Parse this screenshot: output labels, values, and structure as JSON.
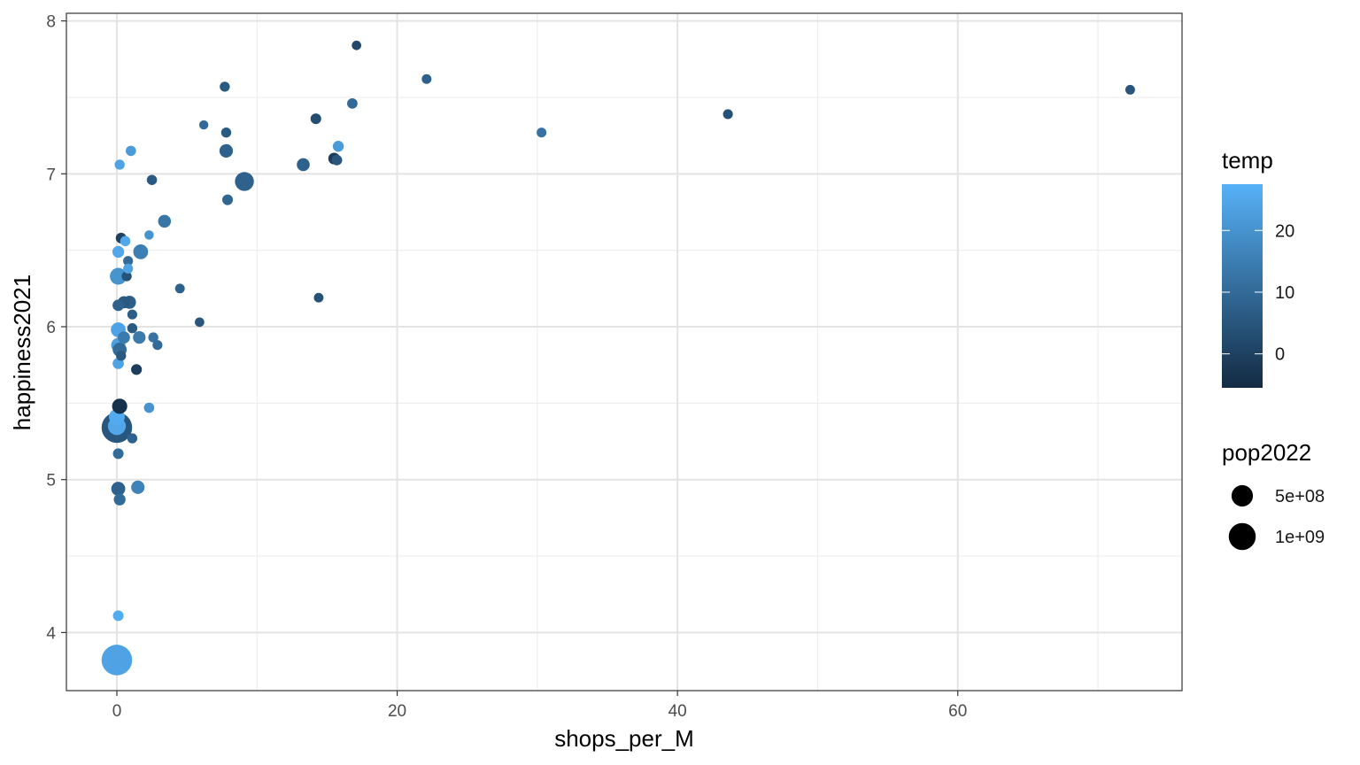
{
  "chart_data": {
    "type": "scatter",
    "xlabel": "shops_per_M",
    "ylabel": "happiness2021",
    "xlim": [
      -3.6,
      76.0
    ],
    "ylim": [
      3.62,
      8.05
    ],
    "x_ticks": [
      0,
      20,
      40,
      60
    ],
    "y_ticks": [
      4,
      5,
      6,
      7,
      8
    ],
    "grid": true,
    "legend_placement": "right",
    "color_legend": {
      "title": "temp",
      "breaks": [
        20,
        10,
        0
      ],
      "limits": [
        -5.5,
        27.5
      ],
      "low_color": "#132B43",
      "high_color": "#56B1F7"
    },
    "size_legend": {
      "title": "pop2022",
      "breaks": [
        {
          "label": "5e+08",
          "value": 500000000
        },
        {
          "label": "1e+09",
          "value": 1000000000
        }
      ]
    },
    "points": [
      {
        "x": 72.3,
        "y": 7.55,
        "temp": 5,
        "pop": 8000000
      },
      {
        "x": 43.6,
        "y": 7.39,
        "temp": 4,
        "pop": 10000000
      },
      {
        "x": 30.3,
        "y": 7.27,
        "temp": 12,
        "pop": 9000000
      },
      {
        "x": 22.1,
        "y": 7.62,
        "temp": 8,
        "pop": 9000000
      },
      {
        "x": 17.1,
        "y": 7.84,
        "temp": 2,
        "pop": 6000000
      },
      {
        "x": 16.8,
        "y": 7.46,
        "temp": 10,
        "pop": 17000000
      },
      {
        "x": 15.8,
        "y": 7.18,
        "temp": 22,
        "pop": 26000000
      },
      {
        "x": 15.7,
        "y": 7.09,
        "temp": 5,
        "pop": 18000000
      },
      {
        "x": 15.5,
        "y": 7.1,
        "temp": -1,
        "pop": 38000000
      },
      {
        "x": 14.2,
        "y": 7.36,
        "temp": 3,
        "pop": 20000000
      },
      {
        "x": 14.4,
        "y": 6.19,
        "temp": 4,
        "pop": 8000000
      },
      {
        "x": 13.3,
        "y": 7.06,
        "temp": 8,
        "pop": 67000000
      },
      {
        "x": 9.1,
        "y": 6.95,
        "temp": 8,
        "pop": 333000000
      },
      {
        "x": 7.7,
        "y": 7.57,
        "temp": 6,
        "pop": 12000000
      },
      {
        "x": 7.8,
        "y": 7.27,
        "temp": 6,
        "pop": 12000000
      },
      {
        "x": 7.8,
        "y": 7.15,
        "temp": 8,
        "pop": 84000000
      },
      {
        "x": 7.9,
        "y": 6.83,
        "temp": 9,
        "pop": 20000000
      },
      {
        "x": 6.2,
        "y": 7.32,
        "temp": 10,
        "pop": 4000000
      },
      {
        "x": 5.9,
        "y": 6.03,
        "temp": 5,
        "pop": 6000000
      },
      {
        "x": 4.5,
        "y": 6.25,
        "temp": 8,
        "pop": 8000000
      },
      {
        "x": 3.4,
        "y": 6.69,
        "temp": 13,
        "pop": 65000000
      },
      {
        "x": 2.9,
        "y": 5.88,
        "temp": 10,
        "pop": 10000000
      },
      {
        "x": 2.6,
        "y": 5.93,
        "temp": 12,
        "pop": 12000000
      },
      {
        "x": 2.5,
        "y": 6.96,
        "temp": 6,
        "pop": 14000000
      },
      {
        "x": 2.3,
        "y": 6.6,
        "temp": 20,
        "pop": 5000000
      },
      {
        "x": 2.3,
        "y": 5.47,
        "temp": 20,
        "pop": 15000000
      },
      {
        "x": 1.7,
        "y": 6.49,
        "temp": 15,
        "pop": 130000000
      },
      {
        "x": 1.6,
        "y": 5.93,
        "temp": 14,
        "pop": 60000000
      },
      {
        "x": 1.5,
        "y": 4.95,
        "temp": 16,
        "pop": 80000000
      },
      {
        "x": 1.4,
        "y": 5.72,
        "temp": -1,
        "pop": 22000000
      },
      {
        "x": 1.1,
        "y": 6.08,
        "temp": 7,
        "pop": 10000000
      },
      {
        "x": 1.1,
        "y": 5.99,
        "temp": 6,
        "pop": 12000000
      },
      {
        "x": 1.1,
        "y": 5.27,
        "temp": 8,
        "pop": 12000000
      },
      {
        "x": 1.0,
        "y": 7.15,
        "temp": 22,
        "pop": 15000000
      },
      {
        "x": 0.9,
        "y": 6.16,
        "temp": 7,
        "pop": 70000000
      },
      {
        "x": 0.8,
        "y": 6.43,
        "temp": 10,
        "pop": 10000000
      },
      {
        "x": 0.8,
        "y": 6.38,
        "temp": 24,
        "pop": 10000000
      },
      {
        "x": 0.7,
        "y": 6.33,
        "temp": 4,
        "pop": 12000000
      },
      {
        "x": 0.6,
        "y": 6.56,
        "temp": 25,
        "pop": 14000000
      },
      {
        "x": 0.5,
        "y": 6.16,
        "temp": 6,
        "pop": 50000000
      },
      {
        "x": 0.5,
        "y": 5.93,
        "temp": 14,
        "pop": 50000000
      },
      {
        "x": 0.3,
        "y": 6.58,
        "temp": 0,
        "pop": 20000000
      },
      {
        "x": 0.3,
        "y": 5.81,
        "temp": 6,
        "pop": 12000000
      },
      {
        "x": 0.2,
        "y": 7.06,
        "temp": 24,
        "pop": 12000000
      },
      {
        "x": 0.2,
        "y": 5.85,
        "temp": 10,
        "pop": 100000000
      },
      {
        "x": 0.2,
        "y": 5.48,
        "temp": -4,
        "pop": 144000000
      },
      {
        "x": 0.2,
        "y": 4.87,
        "temp": 10,
        "pop": 40000000
      },
      {
        "x": 0.1,
        "y": 6.49,
        "temp": 25,
        "pop": 40000000
      },
      {
        "x": 0.1,
        "y": 6.33,
        "temp": 20,
        "pop": 214000000
      },
      {
        "x": 0.1,
        "y": 6.14,
        "temp": 8,
        "pop": 33000000
      },
      {
        "x": 0.1,
        "y": 5.98,
        "temp": 24,
        "pop": 130000000
      },
      {
        "x": 0.1,
        "y": 5.88,
        "temp": 23,
        "pop": 110000000
      },
      {
        "x": 0.1,
        "y": 5.76,
        "temp": 24,
        "pop": 30000000
      },
      {
        "x": 0.1,
        "y": 5.17,
        "temp": 10,
        "pop": 20000000
      },
      {
        "x": 0.1,
        "y": 4.94,
        "temp": 8,
        "pop": 100000000
      },
      {
        "x": 0.1,
        "y": 4.11,
        "temp": 26,
        "pop": 20000000
      },
      {
        "x": 0.0,
        "y": 5.41,
        "temp": 26,
        "pop": 170000000
      },
      {
        "x": 0.0,
        "y": 5.34,
        "temp": 5,
        "pop": 1412000000
      },
      {
        "x": 0.0,
        "y": 5.35,
        "temp": 25,
        "pop": 275000000
      },
      {
        "x": 0.0,
        "y": 3.82,
        "temp": 24,
        "pop": 1417000000
      }
    ]
  }
}
